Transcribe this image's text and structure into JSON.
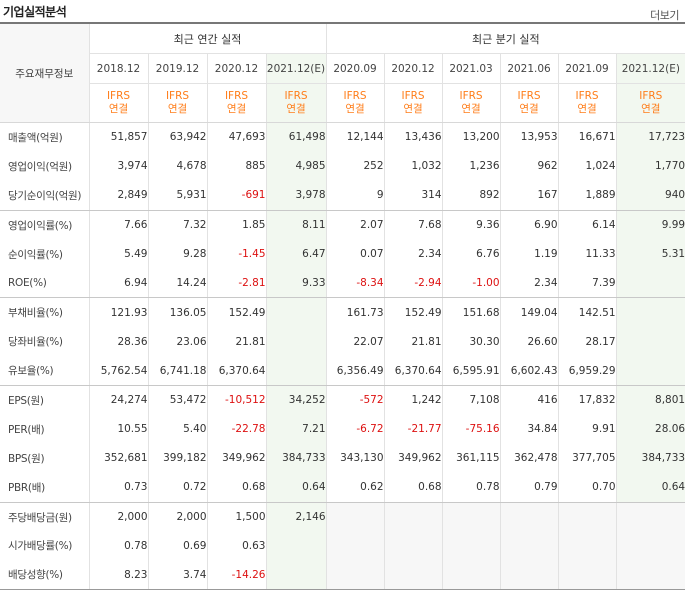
{
  "section_title": "기업실적분석",
  "more_link": "더보기",
  "header": {
    "label_col": "주요재무정보",
    "annual_group": "최근 연간 실적",
    "quarterly_group": "최근 분기 실적",
    "annual_periods": [
      "2018.12",
      "2019.12",
      "2020.12",
      "2021.12(E)"
    ],
    "quarterly_periods": [
      "2020.09",
      "2020.12",
      "2021.03",
      "2021.06",
      "2021.09",
      "2021.12(E)"
    ],
    "ifrs": "IFRS",
    "consolidated": "연결"
  },
  "rows": [
    {
      "label": "매출액(억원)",
      "values": [
        "51,857",
        "63,942",
        "47,693",
        "61,498",
        "12,144",
        "13,436",
        "13,200",
        "13,953",
        "16,671",
        "17,723"
      ]
    },
    {
      "label": "영업이익(억원)",
      "values": [
        "3,974",
        "4,678",
        "885",
        "4,985",
        "252",
        "1,032",
        "1,236",
        "962",
        "1,024",
        "1,770"
      ]
    },
    {
      "label": "당기순이익(억원)",
      "values": [
        "2,849",
        "5,931",
        "-691",
        "3,978",
        "9",
        "314",
        "892",
        "167",
        "1,889",
        "940"
      ]
    },
    {
      "label": "영업이익률(%)",
      "values": [
        "7.66",
        "7.32",
        "1.85",
        "8.11",
        "2.07",
        "7.68",
        "9.36",
        "6.90",
        "6.14",
        "9.99"
      ]
    },
    {
      "label": "순이익률(%)",
      "values": [
        "5.49",
        "9.28",
        "-1.45",
        "6.47",
        "0.07",
        "2.34",
        "6.76",
        "1.19",
        "11.33",
        "5.31"
      ]
    },
    {
      "label": "ROE(%)",
      "values": [
        "6.94",
        "14.24",
        "-2.81",
        "9.33",
        "-8.34",
        "-2.94",
        "-1.00",
        "2.34",
        "7.39",
        ""
      ]
    },
    {
      "label": "부채비율(%)",
      "values": [
        "121.93",
        "136.05",
        "152.49",
        "",
        "161.73",
        "152.49",
        "151.68",
        "149.04",
        "142.51",
        ""
      ]
    },
    {
      "label": "당좌비율(%)",
      "values": [
        "28.36",
        "23.06",
        "21.81",
        "",
        "22.07",
        "21.81",
        "30.30",
        "26.60",
        "28.17",
        ""
      ]
    },
    {
      "label": "유보율(%)",
      "values": [
        "5,762.54",
        "6,741.18",
        "6,370.64",
        "",
        "6,356.49",
        "6,370.64",
        "6,595.91",
        "6,602.43",
        "6,959.29",
        ""
      ]
    },
    {
      "label": "EPS(원)",
      "values": [
        "24,274",
        "53,472",
        "-10,512",
        "34,252",
        "-572",
        "1,242",
        "7,108",
        "416",
        "17,832",
        "8,801"
      ]
    },
    {
      "label": "PER(배)",
      "values": [
        "10.55",
        "5.40",
        "-22.78",
        "7.21",
        "-6.72",
        "-21.77",
        "-75.16",
        "34.84",
        "9.91",
        "28.06"
      ]
    },
    {
      "label": "BPS(원)",
      "values": [
        "352,681",
        "399,182",
        "349,962",
        "384,733",
        "343,130",
        "349,962",
        "361,115",
        "362,478",
        "377,705",
        "384,733"
      ]
    },
    {
      "label": "PBR(배)",
      "values": [
        "0.73",
        "0.72",
        "0.68",
        "0.64",
        "0.62",
        "0.68",
        "0.78",
        "0.79",
        "0.70",
        "0.64"
      ]
    },
    {
      "label": "주당배당금(원)",
      "values": [
        "2,000",
        "2,000",
        "1,500",
        "2,146",
        "",
        "",
        "",
        "",
        "",
        ""
      ]
    },
    {
      "label": "시가배당률(%)",
      "values": [
        "0.78",
        "0.69",
        "0.63",
        "",
        "",
        "",
        "",
        "",
        "",
        ""
      ]
    },
    {
      "label": "배당성향(%)",
      "values": [
        "8.23",
        "3.74",
        "-14.26",
        "",
        "",
        "",
        "",
        "",
        "",
        ""
      ]
    }
  ],
  "colors": {
    "ifrs_orange": "#ff7d19",
    "negative_red": "#dd1111",
    "estimate_bg": "#f2f8f0",
    "no_data_bg": "#f7f7f7"
  }
}
